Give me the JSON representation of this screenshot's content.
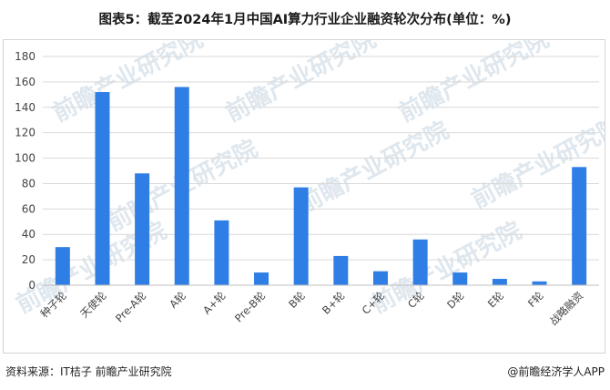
{
  "title": "图表5：截至2024年1月中国AI算力行业企业融资轮次分布(单位：%)",
  "footer": {
    "source": "资料来源：IT桔子 前瞻产业研究院",
    "brand": "@前瞻经济学人APP"
  },
  "watermark": "前瞻产业研究院",
  "colors": {
    "bar": "#2f7ee6",
    "grid": "#d9d9d9",
    "axis": "#bfbfbf"
  },
  "chart_data": {
    "type": "bar",
    "title": "图表5：截至2024年1月中国AI算力行业企业融资轮次分布(单位：%)",
    "xlabel": "",
    "ylabel": "",
    "ylim": [
      0,
      180
    ],
    "yticks": [
      0,
      20,
      40,
      60,
      80,
      100,
      120,
      140,
      160,
      180
    ],
    "grid": true,
    "categories": [
      "种子轮",
      "天使轮",
      "Pre-A轮",
      "A轮",
      "A+轮",
      "Pre-B轮",
      "B轮",
      "B+轮",
      "C+轮",
      "C轮",
      "D轮",
      "E轮",
      "F轮",
      "战略融资"
    ],
    "values": [
      30,
      152,
      88,
      156,
      51,
      10,
      77,
      23,
      11,
      36,
      10,
      5,
      3,
      93
    ]
  }
}
